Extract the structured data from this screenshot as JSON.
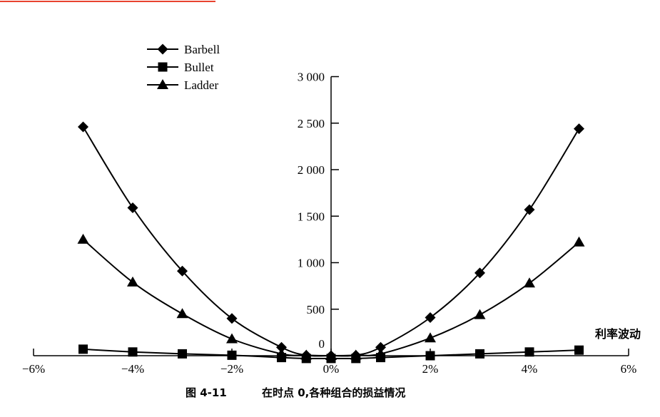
{
  "accent_line_color": "#e8432f",
  "caption": {
    "number": "图 4-11",
    "text": "在时点 0,各种组合的损益情况"
  },
  "chart_data": {
    "type": "line",
    "title": "",
    "xlabel": "利率波动",
    "ylabel": "",
    "x": [
      -5,
      -4,
      -3,
      -2,
      -1,
      -0.5,
      0,
      0.5,
      1,
      2,
      3,
      4,
      5
    ],
    "xlim": [
      -6,
      6
    ],
    "ylim": [
      0,
      3000
    ],
    "x_ticks": [
      -6,
      -4,
      -2,
      0,
      2,
      4,
      6
    ],
    "x_tick_labels": [
      "−6%",
      "−4%",
      "−2%",
      "0%",
      "2%",
      "4%",
      "6%"
    ],
    "y_ticks": [
      0,
      500,
      1000,
      1500,
      2000,
      2500,
      3000
    ],
    "y_tick_labels": [
      "0",
      "500",
      "1 000",
      "1 500",
      "2 000",
      "2 500",
      "3 000"
    ],
    "grid": false,
    "legend_position": "top-left",
    "series": [
      {
        "name": "Barbell",
        "marker": "diamond",
        "values": [
          2460,
          1590,
          910,
          400,
          90,
          5,
          0,
          5,
          90,
          410,
          890,
          1570,
          2440
        ]
      },
      {
        "name": "Bullet",
        "marker": "square",
        "values": [
          70,
          40,
          20,
          5,
          -20,
          -30,
          -30,
          -30,
          -20,
          0,
          20,
          40,
          60
        ]
      },
      {
        "name": "Ladder",
        "marker": "triangle",
        "values": [
          1250,
          790,
          450,
          180,
          20,
          5,
          0,
          5,
          20,
          190,
          440,
          780,
          1220
        ]
      }
    ]
  }
}
